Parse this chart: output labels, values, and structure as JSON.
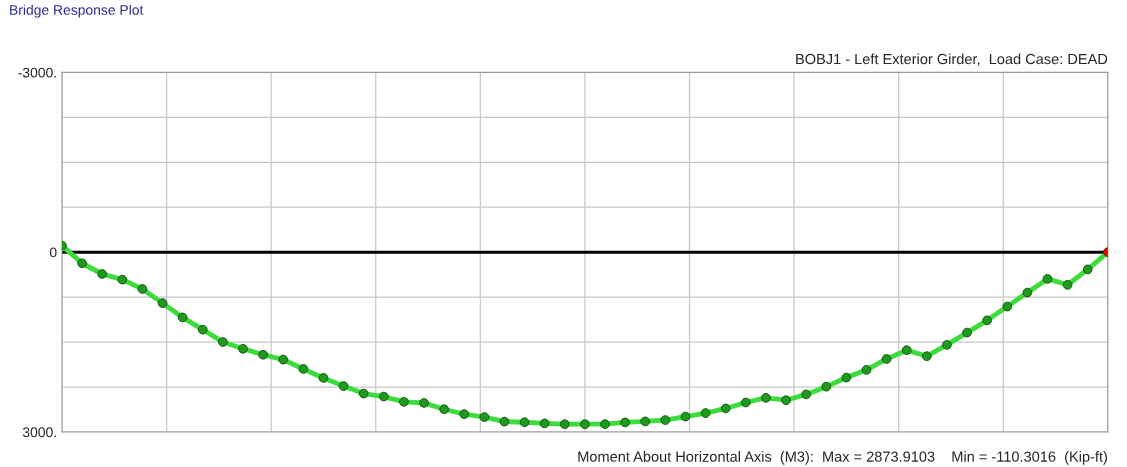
{
  "chart_data": {
    "type": "line",
    "title": "BOBJ1 - Left Exterior Girder,  Load Case: DEAD",
    "annotations": [
      "Bridge Response Plot",
      "Moment About Horizontal Axis  (M3):  Max = 2873.9103    Min = -110.3016  (Kip-ft)"
    ],
    "series": [
      {
        "color": "#3ddc3d",
        "values": [
          -110.3,
          185,
          364,
          458,
          614,
          850,
          1089,
          1293,
          1499,
          1612,
          1711,
          1792,
          1948,
          2098,
          2234,
          2359,
          2409,
          2497,
          2515,
          2621,
          2702,
          2751,
          2827,
          2838,
          2857,
          2870,
          2870,
          2870,
          2841,
          2824,
          2801,
          2743,
          2684,
          2608,
          2508,
          2430,
          2470,
          2373,
          2244,
          2092,
          1964,
          1782,
          1635,
          1736,
          1547,
          1342,
          1137,
          907,
          674,
          446,
          544,
          287,
          0
        ],
        "colors": [
          "#1f9a1f",
          "#1f9a1f",
          "#1f9a1f",
          "#1f9a1f",
          "#1f9a1f",
          "#1f9a1f",
          "#1f9a1f",
          "#1f9a1f",
          "#1f9a1f",
          "#1f9a1f",
          "#1f9a1f",
          "#1f9a1f",
          "#1f9a1f",
          "#1f9a1f",
          "#1f9a1f",
          "#1f9a1f",
          "#1f9a1f",
          "#1f9a1f",
          "#1f9a1f",
          "#1f9a1f",
          "#1f9a1f",
          "#1f9a1f",
          "#1f9a1f",
          "#1f9a1f",
          "#1f9a1f",
          "#1f9a1f",
          "#1f9a1f",
          "#1f9a1f",
          "#1f9a1f",
          "#1f9a1f",
          "#1f9a1f",
          "#1f9a1f",
          "#1f9a1f",
          "#1f9a1f",
          "#1f9a1f",
          "#1f9a1f",
          "#1f9a1f",
          "#1f9a1f",
          "#1f9a1f",
          "#1f9a1f",
          "#1f9a1f",
          "#1f9a1f",
          "#1f9a1f",
          "#1f9a1f",
          "#1f9a1f",
          "#1f9a1f",
          "#1f9a1f",
          "#1f9a1f",
          "#1f9a1f",
          "#1f9a1f",
          "#1f9a1f",
          "#1f9a1f",
          "#ff0000"
        ],
        "marker": "circle",
        "line_style": "solid"
      }
    ],
    "categories": [
      null,
      null,
      null,
      null,
      null,
      null,
      null,
      null,
      null,
      null,
      null,
      null,
      null,
      null,
      null,
      null,
      null,
      null,
      null,
      null,
      null,
      null,
      null,
      null,
      null,
      null,
      null,
      null,
      null,
      null,
      null,
      null,
      null,
      null,
      null,
      null,
      null,
      null,
      null,
      null,
      null,
      null,
      null,
      null,
      null,
      null,
      null,
      null,
      null,
      null,
      null,
      null,
      null
    ],
    "ylim": [
      3000,
      -3000
    ],
    "yticks": [
      {
        "value": -3000,
        "label": "-3000."
      },
      {
        "value": -2250,
        "label": null
      },
      {
        "value": -1500,
        "label": null
      },
      {
        "value": -750,
        "label": null
      },
      {
        "value": 0,
        "label": "0"
      },
      {
        "value": 750,
        "label": null
      },
      {
        "value": 1500,
        "label": null
      },
      {
        "value": 2250,
        "label": null
      },
      {
        "value": 3000,
        "label": "3000."
      }
    ],
    "tick_labels": "y",
    "ref_lines": [
      {
        "axis": "y",
        "value": 0,
        "color": "#000000"
      }
    ],
    "grid": true
  }
}
